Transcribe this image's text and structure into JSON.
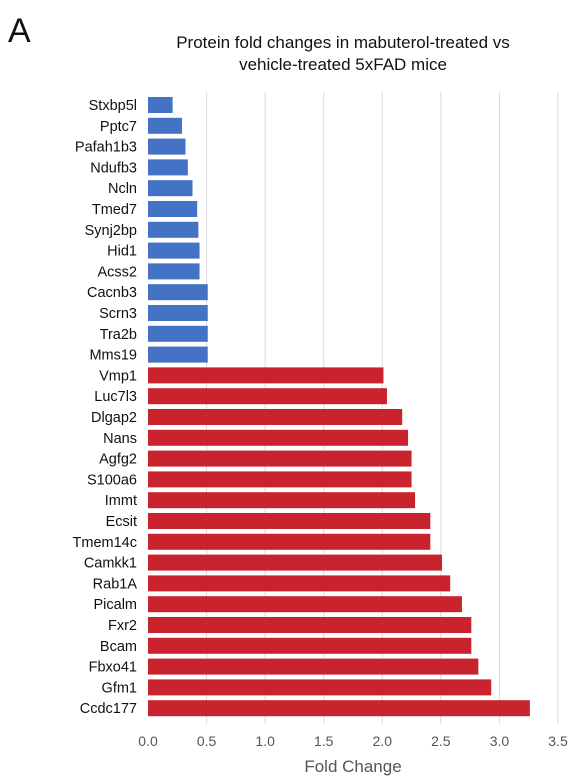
{
  "panel_label": "A",
  "chart_data": {
    "type": "bar",
    "orientation": "horizontal",
    "title": "Protein fold changes in mabuterol-treated vs vehicle-treated 5xFAD mice",
    "title_lines": [
      "Protein fold changes in mabuterol-treated vs",
      "vehicle-treated 5xFAD mice"
    ],
    "xlabel": "Fold Change",
    "ylabel": "",
    "xlim": [
      0,
      3.5
    ],
    "x_ticks": [
      "0.0",
      "0.5",
      "1.0",
      "1.5",
      "2.0",
      "2.5",
      "3.0",
      "3.5"
    ],
    "grid": true,
    "legend": "none",
    "categories": [
      "Stxbp5l",
      "Pptc7",
      "Pafah1b3",
      "Ndufb3",
      "Ncln",
      "Tmed7",
      "Synj2bp",
      "Hid1",
      "Acss2",
      "Cacnb3",
      "Scrn3",
      "Tra2b",
      "Mms19",
      "Vmp1",
      "Luc7l3",
      "Dlgap2",
      "Nans",
      "Agfg2",
      "S100a6",
      "Immt",
      "Ecsit",
      "Tmem14c",
      "Camkk1",
      "Rab1A",
      "Picalm",
      "Fxr2",
      "Bcam",
      "Fbxo41",
      "Gfm1",
      "Ccdc177"
    ],
    "values": [
      0.21,
      0.29,
      0.32,
      0.34,
      0.38,
      0.42,
      0.43,
      0.44,
      0.44,
      0.51,
      0.51,
      0.51,
      0.51,
      2.01,
      2.04,
      2.17,
      2.22,
      2.25,
      2.25,
      2.28,
      2.41,
      2.41,
      2.51,
      2.58,
      2.68,
      2.76,
      2.76,
      2.82,
      2.93,
      3.26
    ],
    "colors": {
      "down": "#4472C4",
      "up": "#C9232E"
    },
    "color_split": "values below 1.0 blue, values above 1.0 red"
  }
}
